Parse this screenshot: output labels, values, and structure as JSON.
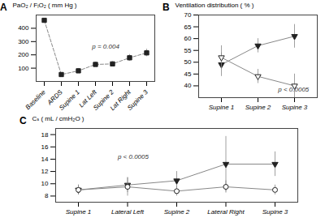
{
  "chart_data": [
    {
      "type": "line",
      "title": "A",
      "categories": [
        "Baseline",
        "ARDS",
        "Supine 1",
        "Lat Left",
        "Supine 2",
        "Lat Right",
        "Supine 3"
      ],
      "ylabel": "PaO₂ / FᵢO₂ ( mm Hg )",
      "ylim": [
        0,
        500
      ],
      "yticks": [
        100,
        200,
        300,
        400
      ],
      "series": [
        {
          "values": [
            460,
            52,
            80,
            128,
            132,
            178,
            215
          ],
          "errors": [
            12,
            8,
            18,
            18,
            18,
            25,
            28
          ],
          "color": "#888888",
          "marker": "square",
          "line_style": "dashed"
        }
      ],
      "annotations": [
        {
          "text": "p = 0.004",
          "x": 2.8,
          "y": 250
        }
      ]
    },
    {
      "type": "line",
      "title": "B",
      "categories": [
        "Supine 1",
        "Supine 2",
        "Supine 3"
      ],
      "ylabel": "Ventilation distribution ( % )",
      "ylim": [
        35,
        70
      ],
      "yticks": [
        40,
        45,
        50,
        55,
        60,
        65,
        70
      ],
      "series": [
        {
          "values": [
            49,
            57,
            61
          ],
          "errors": [
            5,
            3,
            5
          ],
          "color": "#888888",
          "marker": "triangle-down",
          "line_style": "solid"
        },
        {
          "values": [
            52,
            44,
            40
          ],
          "errors": [
            5,
            3,
            5
          ],
          "color": "#888888",
          "marker": "triangle-down-open",
          "line_style": "solid"
        }
      ],
      "annotations": [
        {
          "text": "p < 0.0005",
          "x": 1.55,
          "y": 37.5
        }
      ]
    },
    {
      "type": "line",
      "title": "C",
      "categories": [
        "Supine 1",
        "Lateral Left",
        "Supine 2",
        "Lateral Right",
        "Supine 3"
      ],
      "ylabel": "Cₛ ( mL / cmH₂O )",
      "ylim": [
        7,
        19
      ],
      "yticks": [
        8,
        10,
        12,
        14,
        16,
        18
      ],
      "series": [
        {
          "values": [
            9.0,
            9.8,
            10.5,
            13.2,
            13.2
          ],
          "errors": [
            0.8,
            1.2,
            1.5,
            4.5,
            2.0
          ],
          "color": "#888888",
          "marker": "triangle-down",
          "line_style": "solid"
        },
        {
          "values": [
            9.0,
            9.5,
            8.8,
            9.5,
            9.0
          ],
          "errors": [
            0.8,
            1.5,
            0.8,
            1.0,
            0.8
          ],
          "color": "#888888",
          "marker": "circle-open",
          "line_style": "solid"
        }
      ],
      "annotations": [
        {
          "text": "p < 0.0005",
          "x": 0.8,
          "y": 14.0
        }
      ]
    }
  ]
}
